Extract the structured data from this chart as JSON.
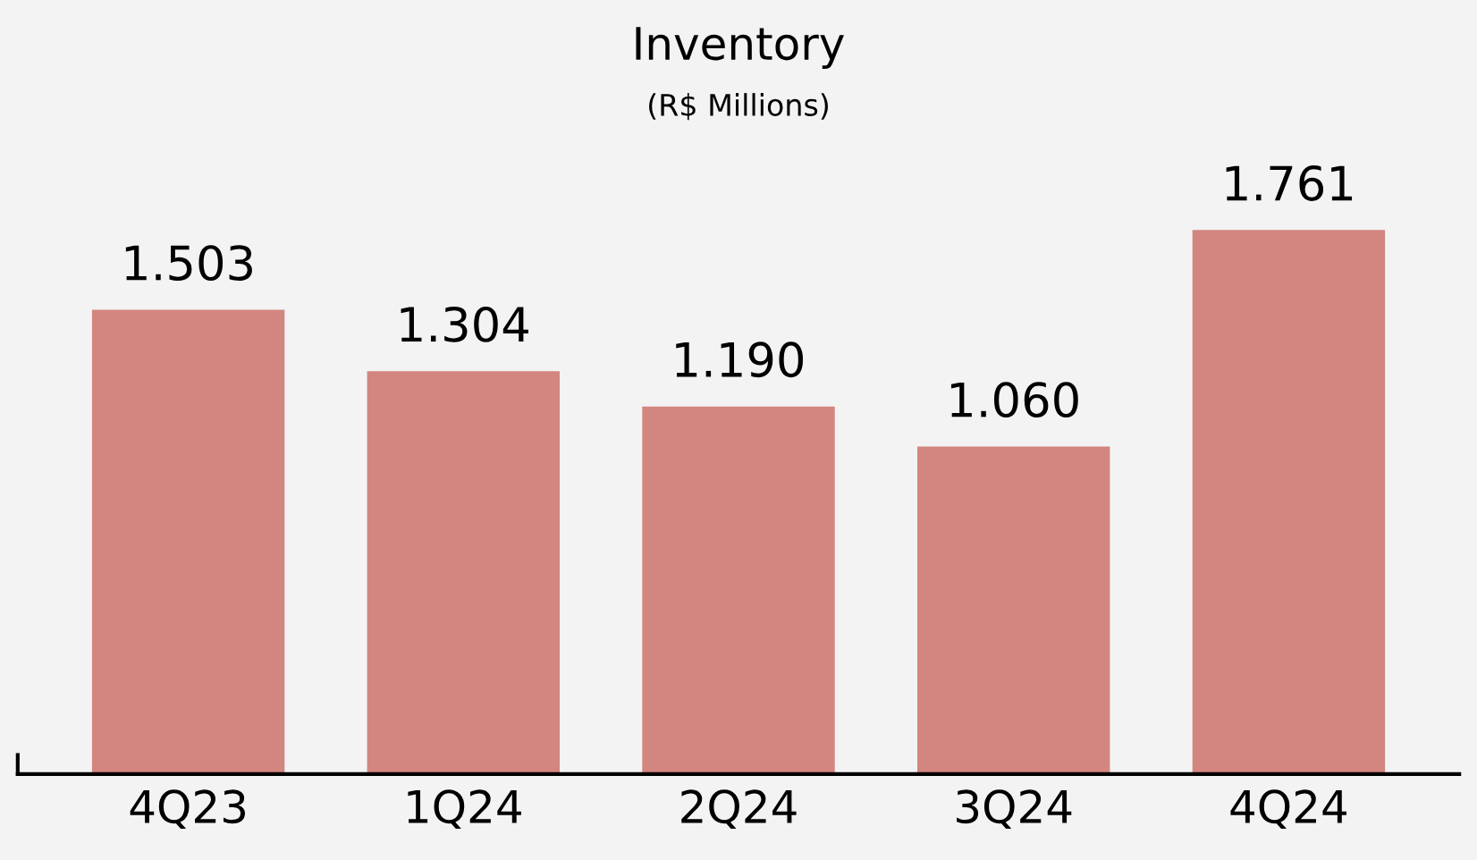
{
  "chart_data": {
    "type": "bar",
    "title": "Inventory",
    "subtitle": "(R$ Millions)",
    "categories": [
      "4Q23",
      "1Q24",
      "2Q24",
      "3Q24",
      "4Q24"
    ],
    "values": [
      1503,
      1304,
      1190,
      1060,
      1761
    ],
    "value_labels": [
      "1.503",
      "1.304",
      "1.190",
      "1.060",
      "1.761"
    ],
    "color": "#d3857f",
    "grid": false,
    "legend": false
  }
}
